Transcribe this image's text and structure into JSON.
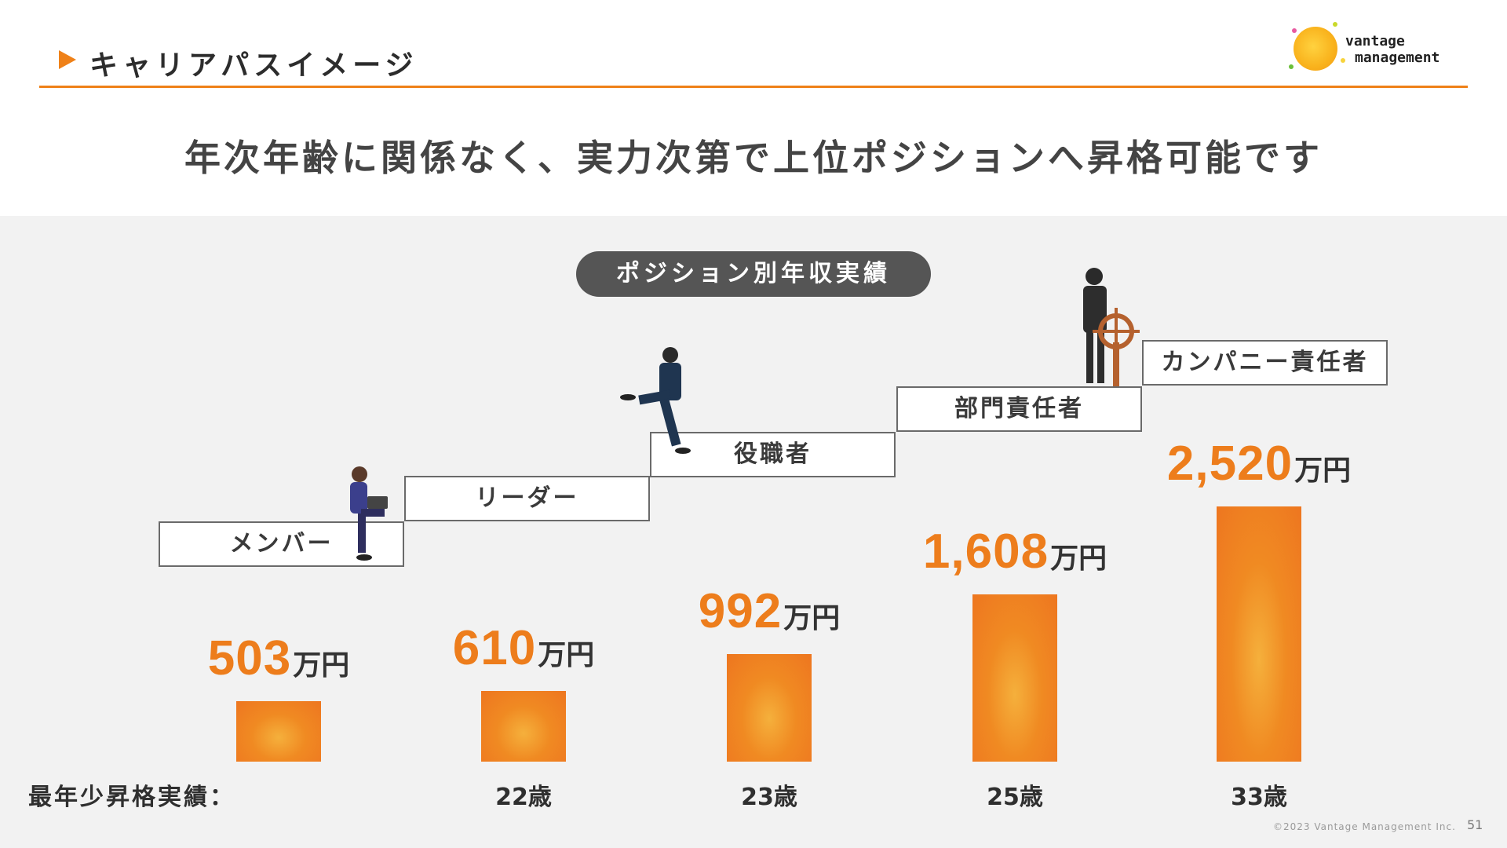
{
  "header": {
    "section_title": "キャリアパスイメージ",
    "logo_text_line1": "vantage",
    "logo_text_line2": "management",
    "subtitle": "年次年齢に関係なく、実力次第で上位ポジションへ昇格可能です"
  },
  "chart_title": "ポジション別年収実績",
  "chart_data": {
    "type": "bar",
    "title": "ポジション別年収実績",
    "categories": [
      "メンバー",
      "リーダー",
      "役職者",
      "部門責任者",
      "カンパニー責任者"
    ],
    "values": [
      503,
      610,
      992,
      1608,
      2520
    ],
    "value_labels": [
      "503",
      "610",
      "992",
      "1,608",
      "2,520"
    ],
    "unit": "万円",
    "ages": [
      "",
      "22歳",
      "23歳",
      "25歳",
      "33歳"
    ],
    "age_row_label": "最年少昇格実績：",
    "bar_color": "#ee7620",
    "value_color": "#ed7d1c",
    "grid": false
  },
  "footer": {
    "copyright": "©2023 Vantage Management Inc.",
    "page_number": "51"
  }
}
